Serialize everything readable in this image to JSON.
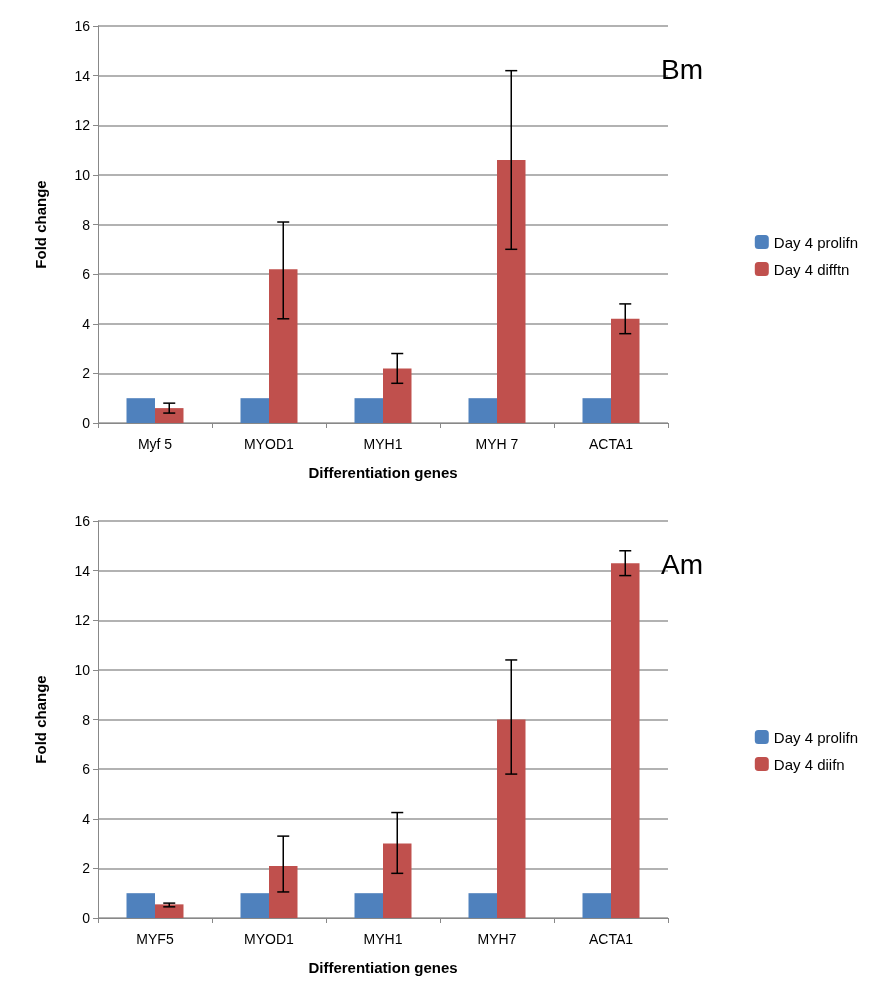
{
  "chart_data": [
    {
      "type": "bar",
      "title": "Bm",
      "xlabel": "Differentiation genes",
      "ylabel": "Fold change",
      "categories": [
        "Myf 5",
        "MYOD1",
        "MYH1",
        "MYH 7",
        "ACTA1"
      ],
      "series": [
        {
          "name": "Day 4 prolifn",
          "color": "#4f81bd",
          "values": [
            1,
            1,
            1,
            1,
            1
          ]
        },
        {
          "name": "Day 4 difftn",
          "color": "#c0504d",
          "values": [
            0.6,
            6.2,
            2.2,
            10.6,
            4.2
          ],
          "errors": [
            [
              0.4,
              0.8
            ],
            [
              4.2,
              8.1
            ],
            [
              1.6,
              2.8
            ],
            [
              7.0,
              14.2
            ],
            [
              3.6,
              4.8
            ]
          ]
        }
      ],
      "ylim": [
        0,
        16
      ],
      "yticks": [
        0,
        2,
        4,
        6,
        8,
        10,
        12,
        14,
        16
      ],
      "grid": "y",
      "legend": "right"
    },
    {
      "type": "bar",
      "title": "Am",
      "xlabel": "Differentiation genes",
      "ylabel": "Fold change",
      "categories": [
        "MYF5",
        "MYOD1",
        "MYH1",
        "MYH7",
        "ACTA1"
      ],
      "series": [
        {
          "name": "Day 4 prolifn",
          "color": "#4f81bd",
          "values": [
            1,
            1,
            1,
            1,
            1
          ]
        },
        {
          "name": "Day 4 diifn",
          "color": "#c0504d",
          "values": [
            0.55,
            2.1,
            3.0,
            8.0,
            14.3
          ],
          "errors": [
            [
              0.45,
              0.6
            ],
            [
              1.05,
              3.3
            ],
            [
              1.8,
              4.25
            ],
            [
              5.8,
              10.4
            ],
            [
              13.8,
              14.8
            ]
          ]
        }
      ],
      "ylim": [
        0,
        16
      ],
      "yticks": [
        0,
        2,
        4,
        6,
        8,
        10,
        12,
        14,
        16
      ],
      "grid": "y",
      "legend": "right"
    }
  ]
}
